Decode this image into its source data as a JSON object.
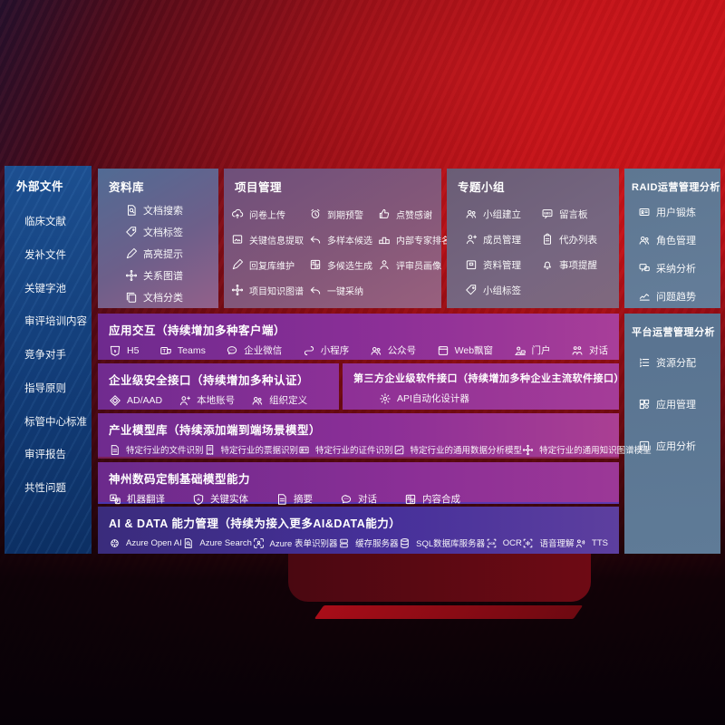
{
  "colors": {
    "accent_red": "#bb1016",
    "sidebar_blue": "#123c77",
    "panel_slate": "#5e7792",
    "band_purple": "#8c2f97",
    "band_indigo": "#46309a"
  },
  "sidebar": {
    "title": "外部文件",
    "items": [
      {
        "label": "临床文献"
      },
      {
        "label": "发补文件"
      },
      {
        "label": "关键字池"
      },
      {
        "label": "审评培训内容"
      },
      {
        "label": "竞争对手"
      },
      {
        "label": "指导原则"
      },
      {
        "label": "标管中心标准"
      },
      {
        "label": "审评报告"
      },
      {
        "label": "共性问题"
      }
    ]
  },
  "panels": {
    "ziliaoku": {
      "title": "资料库",
      "items": [
        {
          "icon": "doc-search",
          "label": "文档搜索"
        },
        {
          "icon": "tag",
          "label": "文档标签"
        },
        {
          "icon": "pen",
          "label": "高亮提示"
        },
        {
          "icon": "graph",
          "label": "关系图谱"
        },
        {
          "icon": "copy",
          "label": "文档分类"
        }
      ]
    },
    "xiangmu": {
      "title": "项目管理",
      "items": [
        {
          "icon": "cloud-up",
          "label": "问卷上传"
        },
        {
          "icon": "doc-img",
          "label": "关键信息提取"
        },
        {
          "icon": "pen",
          "label": "回复库维护"
        },
        {
          "icon": "graph",
          "label": "项目知识图谱"
        },
        {
          "icon": "alarm",
          "label": "到期预警"
        },
        {
          "icon": "reply",
          "label": "多样本候选"
        },
        {
          "icon": "puzzle",
          "label": "多候选生成"
        },
        {
          "icon": "reply",
          "label": "一键采纳"
        },
        {
          "icon": "thumb",
          "label": "点赞感谢"
        },
        {
          "icon": "podium",
          "label": "内部专家排名"
        },
        {
          "icon": "person",
          "label": "评审员画像"
        }
      ]
    },
    "zhuanti": {
      "title": "专题小组",
      "items": [
        {
          "icon": "people",
          "label": "小组建立"
        },
        {
          "icon": "person-add",
          "label": "成员管理"
        },
        {
          "icon": "archive",
          "label": "资料管理"
        },
        {
          "icon": "tag",
          "label": "小组标签"
        },
        {
          "icon": "bbs",
          "label": "留言板"
        },
        {
          "icon": "clipboard",
          "label": "代办列表"
        },
        {
          "icon": "bell",
          "label": "事项提醒"
        }
      ]
    },
    "raid": {
      "title": "RAID运营管理分析",
      "items": [
        {
          "icon": "idcard",
          "label": "用户锻炼"
        },
        {
          "icon": "people",
          "label": "角色管理"
        },
        {
          "icon": "chat-qa",
          "label": "采纳分析"
        },
        {
          "icon": "chart",
          "label": "问题趋势"
        }
      ]
    },
    "pingtai": {
      "title": "平台运营管理分析",
      "items": [
        {
          "icon": "list",
          "label": "资源分配"
        },
        {
          "icon": "grid",
          "label": "应用管理"
        },
        {
          "icon": "chart-box",
          "label": "应用分析"
        }
      ]
    }
  },
  "bands": {
    "jiaohu": {
      "title": "应用交互（持续增加多种客户端）",
      "items": [
        {
          "icon": "h5",
          "label": "H5"
        },
        {
          "icon": "teams",
          "label": "Teams"
        },
        {
          "icon": "wechat",
          "label": "企业微信"
        },
        {
          "icon": "mini",
          "label": "小程序"
        },
        {
          "icon": "people",
          "label": "公众号"
        },
        {
          "icon": "window",
          "label": "Web飘窗"
        },
        {
          "icon": "portal",
          "label": "门户"
        },
        {
          "icon": "chatduo",
          "label": "对话"
        }
      ]
    },
    "anquan": {
      "title": "企业级安全接口（持续增加多种认证）",
      "items": [
        {
          "icon": "shield",
          "label": "AD/AAD"
        },
        {
          "icon": "person-add",
          "label": "本地账号"
        },
        {
          "icon": "people",
          "label": "组织定义"
        }
      ]
    },
    "disanfang": {
      "title": "第三方企业级软件接口（持续增加多种企业主流软件接口）",
      "items": [
        {
          "icon": "gear",
          "label": "API自动化设计器"
        }
      ]
    },
    "chanye": {
      "title": "产业模型库（持续添加端到端场景模型）",
      "items": [
        {
          "icon": "doc",
          "label": "特定行业的文件识别"
        },
        {
          "icon": "receipt",
          "label": "特定行业的票据识别"
        },
        {
          "icon": "idcard",
          "label": "特定行业的证件识别"
        },
        {
          "icon": "chart-img",
          "label": "特定行业的通用数据分析模型"
        },
        {
          "icon": "graph",
          "label": "特定行业的通用知识图谱模型"
        }
      ]
    },
    "shenzhou": {
      "title": "神州数码定制基础模型能力",
      "items": [
        {
          "icon": "translate",
          "label": "机器翻译"
        },
        {
          "icon": "shield-a",
          "label": "关键实体"
        },
        {
          "icon": "doc",
          "label": "摘要"
        },
        {
          "icon": "chat",
          "label": "对话"
        },
        {
          "icon": "puzzle",
          "label": "内容合成"
        }
      ]
    },
    "aidata": {
      "title": "AI & DATA 能力管理（持续为接入更多AI&DATA能力）",
      "items": [
        {
          "icon": "openai",
          "label": "Azure Open AI"
        },
        {
          "icon": "doc-search",
          "label": "Azure Search"
        },
        {
          "icon": "form",
          "label": "Azure 表单识别器"
        },
        {
          "icon": "server",
          "label": "缓存服务器"
        },
        {
          "icon": "db",
          "label": "SQL数据库服务器"
        },
        {
          "icon": "ocr",
          "label": "OCR"
        },
        {
          "icon": "voice",
          "label": "语音理解"
        },
        {
          "icon": "tts",
          "label": "TTS"
        }
      ]
    }
  }
}
